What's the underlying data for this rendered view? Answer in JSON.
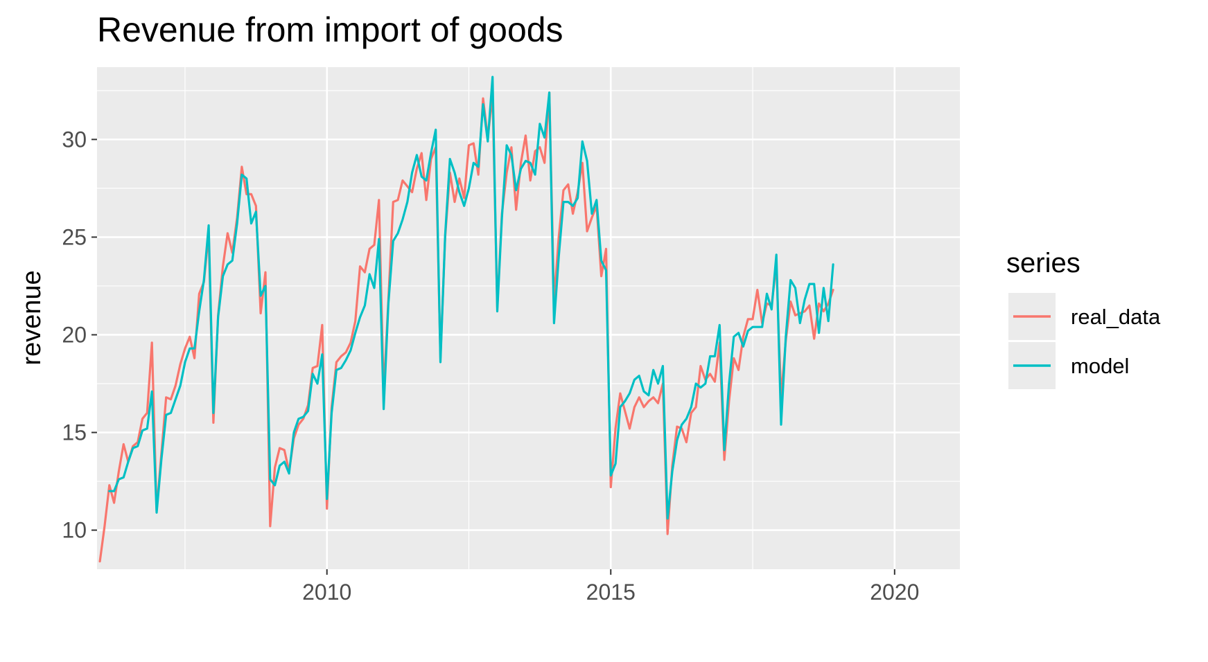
{
  "chart_data": {
    "type": "line",
    "title": "Revenue from import of goods",
    "xlabel": "",
    "ylabel": "revenue",
    "xlim": [
      2005.95,
      2021.15
    ],
    "ylim": [
      8.0,
      33.7
    ],
    "x_ticks": [
      2010,
      2015,
      2020
    ],
    "x_tick_labels": [
      "2010",
      "2015",
      "2020"
    ],
    "y_ticks": [
      10,
      15,
      20,
      25,
      30
    ],
    "y_tick_labels": [
      "10",
      "15",
      "20",
      "25",
      "30"
    ],
    "grid": true,
    "legend": {
      "title": "series",
      "position": "right"
    },
    "series": [
      {
        "name": "real_data",
        "color": "#F8766D",
        "x": [
          2006.0,
          2006.083,
          2006.167,
          2006.25,
          2006.333,
          2006.417,
          2006.5,
          2006.583,
          2006.667,
          2006.75,
          2006.833,
          2006.917,
          2007.0,
          2007.083,
          2007.167,
          2007.25,
          2007.333,
          2007.417,
          2007.5,
          2007.583,
          2007.667,
          2007.75,
          2007.833,
          2007.917,
          2008.0,
          2008.083,
          2008.167,
          2008.25,
          2008.333,
          2008.417,
          2008.5,
          2008.583,
          2008.667,
          2008.75,
          2008.833,
          2008.917,
          2009.0,
          2009.083,
          2009.167,
          2009.25,
          2009.333,
          2009.417,
          2009.5,
          2009.583,
          2009.667,
          2009.75,
          2009.833,
          2009.917,
          2010.0,
          2010.083,
          2010.167,
          2010.25,
          2010.333,
          2010.417,
          2010.5,
          2010.583,
          2010.667,
          2010.75,
          2010.833,
          2010.917,
          2011.0,
          2011.083,
          2011.167,
          2011.25,
          2011.333,
          2011.417,
          2011.5,
          2011.583,
          2011.667,
          2011.75,
          2011.833,
          2011.917,
          2012.0,
          2012.083,
          2012.167,
          2012.25,
          2012.333,
          2012.417,
          2012.5,
          2012.583,
          2012.667,
          2012.75,
          2012.833,
          2012.917,
          2013.0,
          2013.083,
          2013.167,
          2013.25,
          2013.333,
          2013.417,
          2013.5,
          2013.583,
          2013.667,
          2013.75,
          2013.833,
          2013.917,
          2014.0,
          2014.083,
          2014.167,
          2014.25,
          2014.333,
          2014.417,
          2014.5,
          2014.583,
          2014.667,
          2014.75,
          2014.833,
          2014.917,
          2015.0,
          2015.083,
          2015.167,
          2015.25,
          2015.333,
          2015.417,
          2015.5,
          2015.583,
          2015.667,
          2015.75,
          2015.833,
          2015.917,
          2016.0,
          2016.083,
          2016.167,
          2016.25,
          2016.333,
          2016.417,
          2016.5,
          2016.583,
          2016.667,
          2016.75,
          2016.833,
          2016.917,
          2017.0,
          2017.083,
          2017.167,
          2017.25,
          2017.333,
          2017.417,
          2017.5,
          2017.583,
          2017.667,
          2017.75,
          2017.833,
          2017.917,
          2018.0,
          2018.083,
          2018.167,
          2018.25,
          2018.333,
          2018.417,
          2018.5,
          2018.583,
          2018.667,
          2018.75,
          2018.833,
          2018.917
        ],
        "values": [
          8.4,
          10.2,
          12.3,
          11.4,
          13.0,
          14.4,
          13.5,
          14.3,
          14.5,
          15.7,
          16.0,
          19.6,
          11.0,
          13.9,
          16.8,
          16.7,
          17.4,
          18.5,
          19.3,
          19.9,
          18.8,
          22.1,
          22.7,
          25.2,
          15.5,
          21.0,
          23.5,
          25.2,
          24.2,
          26.0,
          28.6,
          27.2,
          27.2,
          26.6,
          21.1,
          23.2,
          10.2,
          13.2,
          14.2,
          14.1,
          13.0,
          14.7,
          15.4,
          15.7,
          16.4,
          18.3,
          18.4,
          20.5,
          11.1,
          16.3,
          18.6,
          18.9,
          19.1,
          19.6,
          20.7,
          23.5,
          23.2,
          24.4,
          24.6,
          26.9,
          17.0,
          21.8,
          26.8,
          26.9,
          27.9,
          27.6,
          27.3,
          28.5,
          29.3,
          26.9,
          29.0,
          29.6,
          18.8,
          25.0,
          28.3,
          26.8,
          28.0,
          27.0,
          29.7,
          29.8,
          28.2,
          32.1,
          30.1,
          32.3,
          21.4,
          26.2,
          28.3,
          29.6,
          26.4,
          28.8,
          30.2,
          27.9,
          29.4,
          29.6,
          28.8,
          32.4,
          21.7,
          25.0,
          27.4,
          27.7,
          26.2,
          27.3,
          28.8,
          25.3,
          26.0,
          26.6,
          23.0,
          24.4,
          12.2,
          15.2,
          17.0,
          16.1,
          15.2,
          16.3,
          16.8,
          16.3,
          16.6,
          16.8,
          16.5,
          17.5,
          9.8,
          13.3,
          15.3,
          15.2,
          14.5,
          16.0,
          16.3,
          18.4,
          17.7,
          18.0,
          17.6,
          19.6,
          13.6,
          16.6,
          18.8,
          18.2,
          19.9,
          20.8,
          20.8,
          22.3,
          20.6,
          21.6,
          21.5,
          23.6,
          16.8,
          19.7,
          21.7,
          21.0,
          21.1,
          21.2,
          21.5,
          19.8,
          21.6,
          21.2,
          21.6,
          22.3
        ]
      },
      {
        "name": "model",
        "color": "#00BFC4",
        "x": [
          2006.167,
          2006.25,
          2006.333,
          2006.417,
          2006.5,
          2006.583,
          2006.667,
          2006.75,
          2006.833,
          2006.917,
          2007.0,
          2007.083,
          2007.167,
          2007.25,
          2007.333,
          2007.417,
          2007.5,
          2007.583,
          2007.667,
          2007.75,
          2007.833,
          2007.917,
          2008.0,
          2008.083,
          2008.167,
          2008.25,
          2008.333,
          2008.417,
          2008.5,
          2008.583,
          2008.667,
          2008.75,
          2008.833,
          2008.917,
          2009.0,
          2009.083,
          2009.167,
          2009.25,
          2009.333,
          2009.417,
          2009.5,
          2009.583,
          2009.667,
          2009.75,
          2009.833,
          2009.917,
          2010.0,
          2010.083,
          2010.167,
          2010.25,
          2010.333,
          2010.417,
          2010.5,
          2010.583,
          2010.667,
          2010.75,
          2010.833,
          2010.917,
          2011.0,
          2011.083,
          2011.167,
          2011.25,
          2011.333,
          2011.417,
          2011.5,
          2011.583,
          2011.667,
          2011.75,
          2011.833,
          2011.917,
          2012.0,
          2012.083,
          2012.167,
          2012.25,
          2012.333,
          2012.417,
          2012.5,
          2012.583,
          2012.667,
          2012.75,
          2012.833,
          2012.917,
          2013.0,
          2013.083,
          2013.167,
          2013.25,
          2013.333,
          2013.417,
          2013.5,
          2013.583,
          2013.667,
          2013.75,
          2013.833,
          2013.917,
          2014.0,
          2014.083,
          2014.167,
          2014.25,
          2014.333,
          2014.417,
          2014.5,
          2014.583,
          2014.667,
          2014.75,
          2014.833,
          2014.917,
          2015.0,
          2015.083,
          2015.167,
          2015.25,
          2015.333,
          2015.417,
          2015.5,
          2015.583,
          2015.667,
          2015.75,
          2015.833,
          2015.917,
          2016.0,
          2016.083,
          2016.167,
          2016.25,
          2016.333,
          2016.417,
          2016.5,
          2016.583,
          2016.667,
          2016.75,
          2016.833,
          2016.917,
          2017.0,
          2017.083,
          2017.167,
          2017.25,
          2017.333,
          2017.417,
          2017.5,
          2017.583,
          2017.667,
          2017.75,
          2017.833,
          2017.917,
          2018.0,
          2018.083,
          2018.167,
          2018.25,
          2018.333,
          2018.417,
          2018.5,
          2018.583,
          2018.667,
          2018.75,
          2018.833,
          2018.917
        ],
        "values": [
          12.0,
          12.0,
          12.6,
          12.7,
          13.5,
          14.2,
          14.3,
          15.1,
          15.2,
          17.1,
          10.9,
          13.6,
          15.9,
          16.0,
          16.7,
          17.4,
          18.6,
          19.3,
          19.3,
          21.2,
          22.8,
          25.6,
          16.0,
          20.9,
          23.0,
          23.6,
          23.8,
          25.7,
          28.2,
          28.0,
          25.7,
          26.3,
          22.0,
          22.5,
          12.6,
          12.3,
          13.3,
          13.5,
          12.9,
          15.0,
          15.7,
          15.8,
          16.1,
          18.0,
          17.5,
          19.0,
          11.6,
          16.0,
          18.2,
          18.3,
          18.7,
          19.2,
          20.1,
          20.9,
          21.5,
          23.1,
          22.4,
          24.9,
          16.2,
          21.6,
          24.8,
          25.2,
          25.9,
          26.8,
          28.3,
          29.2,
          28.1,
          27.9,
          29.3,
          30.5,
          18.6,
          25.1,
          29.0,
          28.3,
          27.3,
          26.6,
          27.5,
          28.8,
          28.6,
          31.8,
          29.9,
          33.2,
          21.2,
          26.0,
          29.7,
          29.2,
          27.4,
          28.5,
          28.9,
          28.8,
          28.2,
          30.8,
          30.1,
          32.4,
          20.6,
          24.0,
          26.8,
          26.8,
          26.6,
          27.0,
          29.9,
          28.9,
          26.2,
          26.9,
          23.8,
          23.3,
          12.8,
          13.4,
          16.3,
          16.6,
          17.0,
          17.7,
          17.9,
          17.1,
          16.9,
          18.2,
          17.5,
          18.4,
          10.6,
          13.0,
          14.6,
          15.4,
          15.7,
          16.3,
          17.5,
          17.3,
          17.5,
          18.9,
          18.9,
          20.5,
          14.1,
          17.5,
          19.9,
          20.1,
          19.4,
          20.2,
          20.4,
          20.4,
          20.4,
          22.1,
          21.3,
          24.1,
          15.4,
          19.9,
          22.8,
          22.4,
          20.6,
          21.8,
          22.6,
          22.6,
          20.1,
          22.4,
          20.7,
          23.6
        ]
      }
    ]
  }
}
